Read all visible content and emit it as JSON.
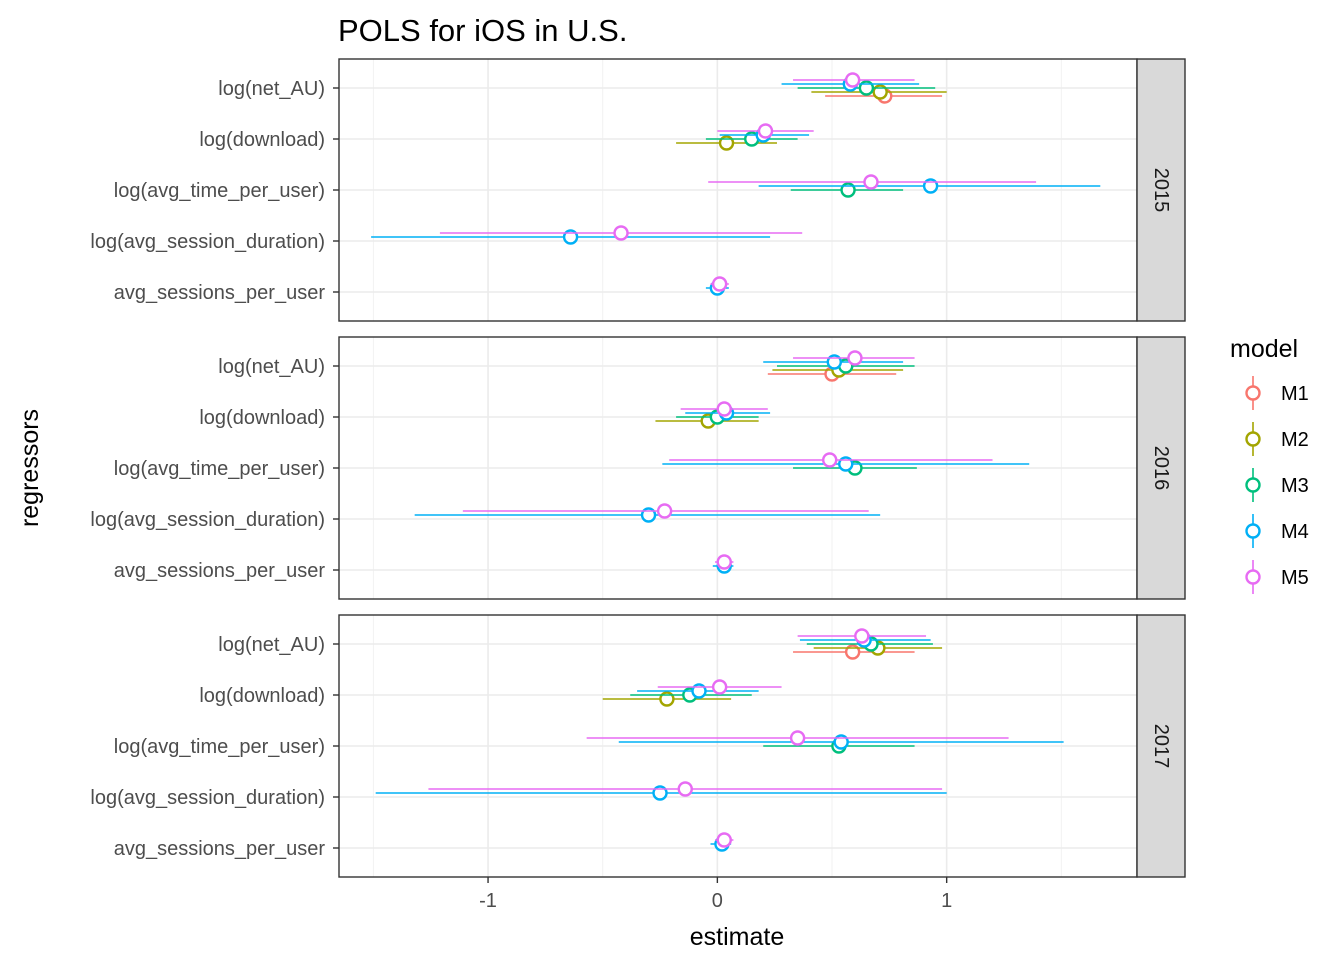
{
  "chart_data": {
    "type": "scatter",
    "subtype": "coefficient-plot-with-error-bars",
    "title": "POLS for iOS in U.S.",
    "xlabel": "estimate",
    "ylabel": "regressors",
    "xlim": [
      -1.65,
      1.83
    ],
    "x_ticks": [
      -1,
      0,
      1
    ],
    "grid": true,
    "legend": {
      "title": "model",
      "position": "right"
    },
    "categories": [
      "log(net_AU)",
      "log(download)",
      "log(avg_time_per_user)",
      "log(avg_session_duration)",
      "avg_sessions_per_user"
    ],
    "models": [
      {
        "name": "M1",
        "color": "#F8766D"
      },
      {
        "name": "M2",
        "color": "#A3A500"
      },
      {
        "name": "M3",
        "color": "#00BF7D"
      },
      {
        "name": "M4",
        "color": "#00B0F6"
      },
      {
        "name": "M5",
        "color": "#E76BF3"
      }
    ],
    "panels": [
      {
        "label": "2015",
        "points": [
          {
            "regressor": "log(net_AU)",
            "model": "M1",
            "estimate": 0.73,
            "low": 0.47,
            "high": 0.98
          },
          {
            "regressor": "log(net_AU)",
            "model": "M2",
            "estimate": 0.71,
            "low": 0.41,
            "high": 1.0
          },
          {
            "regressor": "log(net_AU)",
            "model": "M3",
            "estimate": 0.65,
            "low": 0.35,
            "high": 0.95
          },
          {
            "regressor": "log(net_AU)",
            "model": "M4",
            "estimate": 0.58,
            "low": 0.28,
            "high": 0.88
          },
          {
            "regressor": "log(net_AU)",
            "model": "M5",
            "estimate": 0.59,
            "low": 0.33,
            "high": 0.86
          },
          {
            "regressor": "log(download)",
            "model": "M2",
            "estimate": 0.04,
            "low": -0.18,
            "high": 0.26
          },
          {
            "regressor": "log(download)",
            "model": "M3",
            "estimate": 0.15,
            "low": -0.05,
            "high": 0.35
          },
          {
            "regressor": "log(download)",
            "model": "M4",
            "estimate": 0.2,
            "low": 0.01,
            "high": 0.4
          },
          {
            "regressor": "log(download)",
            "model": "M5",
            "estimate": 0.21,
            "low": 0.0,
            "high": 0.42
          },
          {
            "regressor": "log(avg_time_per_user)",
            "model": "M3",
            "estimate": 0.57,
            "low": 0.32,
            "high": 0.81
          },
          {
            "regressor": "log(avg_time_per_user)",
            "model": "M4",
            "estimate": 0.93,
            "low": 0.18,
            "high": 1.67
          },
          {
            "regressor": "log(avg_time_per_user)",
            "model": "M5",
            "estimate": 0.67,
            "low": -0.04,
            "high": 1.39
          },
          {
            "regressor": "log(avg_session_duration)",
            "model": "M4",
            "estimate": -0.64,
            "low": -1.51,
            "high": 0.23
          },
          {
            "regressor": "log(avg_session_duration)",
            "model": "M5",
            "estimate": -0.42,
            "low": -1.21,
            "high": 0.37
          },
          {
            "regressor": "avg_sessions_per_user",
            "model": "M4",
            "estimate": 0.0,
            "low": -0.05,
            "high": 0.05
          },
          {
            "regressor": "avg_sessions_per_user",
            "model": "M5",
            "estimate": 0.01,
            "low": -0.03,
            "high": 0.05
          }
        ]
      },
      {
        "label": "2016",
        "points": [
          {
            "regressor": "log(net_AU)",
            "model": "M1",
            "estimate": 0.5,
            "low": 0.22,
            "high": 0.78
          },
          {
            "regressor": "log(net_AU)",
            "model": "M2",
            "estimate": 0.53,
            "low": 0.24,
            "high": 0.81
          },
          {
            "regressor": "log(net_AU)",
            "model": "M3",
            "estimate": 0.56,
            "low": 0.26,
            "high": 0.86
          },
          {
            "regressor": "log(net_AU)",
            "model": "M4",
            "estimate": 0.51,
            "low": 0.2,
            "high": 0.81
          },
          {
            "regressor": "log(net_AU)",
            "model": "M5",
            "estimate": 0.6,
            "low": 0.33,
            "high": 0.86
          },
          {
            "regressor": "log(download)",
            "model": "M2",
            "estimate": -0.04,
            "low": -0.27,
            "high": 0.18
          },
          {
            "regressor": "log(download)",
            "model": "M3",
            "estimate": 0.0,
            "low": -0.18,
            "high": 0.18
          },
          {
            "regressor": "log(download)",
            "model": "M4",
            "estimate": 0.04,
            "low": -0.14,
            "high": 0.23
          },
          {
            "regressor": "log(download)",
            "model": "M5",
            "estimate": 0.03,
            "low": -0.16,
            "high": 0.22
          },
          {
            "regressor": "log(avg_time_per_user)",
            "model": "M3",
            "estimate": 0.6,
            "low": 0.33,
            "high": 0.87
          },
          {
            "regressor": "log(avg_time_per_user)",
            "model": "M4",
            "estimate": 0.56,
            "low": -0.24,
            "high": 1.36
          },
          {
            "regressor": "log(avg_time_per_user)",
            "model": "M5",
            "estimate": 0.49,
            "low": -0.21,
            "high": 1.2
          },
          {
            "regressor": "log(avg_session_duration)",
            "model": "M4",
            "estimate": -0.3,
            "low": -1.32,
            "high": 0.71
          },
          {
            "regressor": "log(avg_session_duration)",
            "model": "M5",
            "estimate": -0.23,
            "low": -1.11,
            "high": 0.66
          },
          {
            "regressor": "avg_sessions_per_user",
            "model": "M4",
            "estimate": 0.03,
            "low": -0.02,
            "high": 0.07
          },
          {
            "regressor": "avg_sessions_per_user",
            "model": "M5",
            "estimate": 0.03,
            "low": -0.01,
            "high": 0.07
          }
        ]
      },
      {
        "label": "2017",
        "points": [
          {
            "regressor": "log(net_AU)",
            "model": "M1",
            "estimate": 0.59,
            "low": 0.33,
            "high": 0.86
          },
          {
            "regressor": "log(net_AU)",
            "model": "M2",
            "estimate": 0.7,
            "low": 0.42,
            "high": 0.98
          },
          {
            "regressor": "log(net_AU)",
            "model": "M3",
            "estimate": 0.67,
            "low": 0.39,
            "high": 0.94
          },
          {
            "regressor": "log(net_AU)",
            "model": "M4",
            "estimate": 0.64,
            "low": 0.36,
            "high": 0.93
          },
          {
            "regressor": "log(net_AU)",
            "model": "M5",
            "estimate": 0.63,
            "low": 0.35,
            "high": 0.91
          },
          {
            "regressor": "log(download)",
            "model": "M2",
            "estimate": -0.22,
            "low": -0.5,
            "high": 0.06
          },
          {
            "regressor": "log(download)",
            "model": "M3",
            "estimate": -0.12,
            "low": -0.38,
            "high": 0.15
          },
          {
            "regressor": "log(download)",
            "model": "M4",
            "estimate": -0.08,
            "low": -0.35,
            "high": 0.18
          },
          {
            "regressor": "log(download)",
            "model": "M5",
            "estimate": 0.01,
            "low": -0.26,
            "high": 0.28
          },
          {
            "regressor": "log(avg_time_per_user)",
            "model": "M3",
            "estimate": 0.53,
            "low": 0.2,
            "high": 0.86
          },
          {
            "regressor": "log(avg_time_per_user)",
            "model": "M4",
            "estimate": 0.54,
            "low": -0.43,
            "high": 1.51
          },
          {
            "regressor": "log(avg_time_per_user)",
            "model": "M5",
            "estimate": 0.35,
            "low": -0.57,
            "high": 1.27
          },
          {
            "regressor": "log(avg_session_duration)",
            "model": "M4",
            "estimate": -0.25,
            "low": -1.49,
            "high": 1.0
          },
          {
            "regressor": "log(avg_session_duration)",
            "model": "M5",
            "estimate": -0.14,
            "low": -1.26,
            "high": 0.98
          },
          {
            "regressor": "avg_sessions_per_user",
            "model": "M4",
            "estimate": 0.02,
            "low": -0.03,
            "high": 0.06
          },
          {
            "regressor": "avg_sessions_per_user",
            "model": "M5",
            "estimate": 0.03,
            "low": -0.01,
            "high": 0.07
          }
        ]
      }
    ]
  }
}
